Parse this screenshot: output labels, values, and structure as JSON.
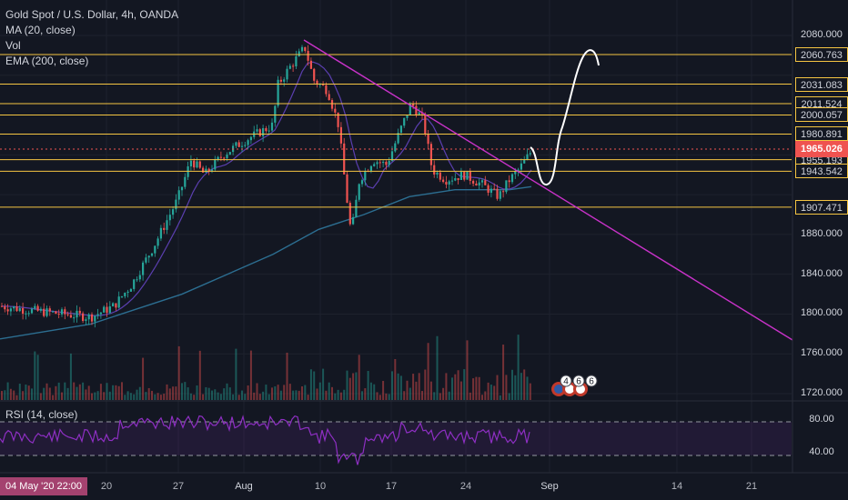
{
  "legend": {
    "title": "Gold Spot / U.S. Dollar, 4h, OANDA",
    "ma": "MA (20, close)",
    "vol": "Vol",
    "ema": "EMA (200, close)"
  },
  "rsi": {
    "label": "RSI (14, close)",
    "ticks": [
      "80.00",
      "40.00"
    ]
  },
  "price_axis": {
    "ticks": [
      "2080.000",
      "1880.000",
      "1840.000",
      "1800.000",
      "1760.000",
      "1720.000"
    ],
    "levels": [
      "2060.763",
      "2031.083",
      "2011.524",
      "2000.057",
      "1980.891",
      "1955.193",
      "1943.542",
      "1907.471"
    ],
    "current": "1965.026"
  },
  "time_axis": {
    "badge": "04 May '20  22:00",
    "labels": [
      "20",
      "27",
      "Aug",
      "10",
      "17",
      "24",
      "Sep",
      "14",
      "21"
    ]
  },
  "events": [
    "4",
    "6",
    "6"
  ],
  "colors": {
    "background": "#131722",
    "up": "#26a69a",
    "down": "#ef5350",
    "level": "#f5c542",
    "trendline": "#c832c8",
    "current": "#ef5350",
    "ema": "#2c6e91",
    "ma": "#5b3fb0",
    "rsi": "#8e2fc3"
  }
}
